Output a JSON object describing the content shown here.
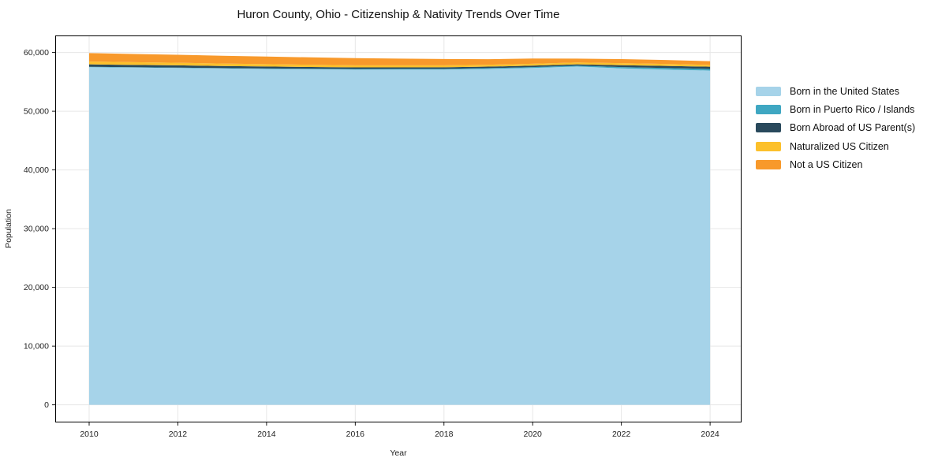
{
  "chart_data": {
    "type": "area",
    "stacked": true,
    "title": "Huron County, Ohio - Citizenship & Nativity Trends Over Time",
    "xlabel": "Year",
    "ylabel": "Population",
    "grid": true,
    "legend_position": "right-outside",
    "x": [
      2010,
      2011,
      2012,
      2013,
      2014,
      2015,
      2016,
      2017,
      2018,
      2019,
      2020,
      2021,
      2022,
      2023,
      2024
    ],
    "xticks": [
      2010,
      2012,
      2014,
      2016,
      2018,
      2020,
      2022,
      2024
    ],
    "xtick_labels": [
      "2010",
      "2012",
      "2014",
      "2016",
      "2018",
      "2020",
      "2022",
      "2024"
    ],
    "yticks": [
      0,
      10000,
      20000,
      30000,
      40000,
      50000,
      60000
    ],
    "ytick_labels": [
      "0",
      "10,000",
      "20,000",
      "30,000",
      "40,000",
      "50,000",
      "60,000"
    ],
    "xlim": [
      2009.24,
      2024.71
    ],
    "ylim": [
      -3000,
      62900
    ],
    "series": [
      {
        "name": "Born in the United States",
        "color": "#A6D3E9",
        "values": [
          57500,
          57430,
          57360,
          57280,
          57200,
          57150,
          57090,
          57090,
          57090,
          57200,
          57360,
          57620,
          57300,
          57100,
          56920
        ]
      },
      {
        "name": "Born in Puerto Rico / Islands",
        "color": "#3FA7C2",
        "values": [
          60,
          60,
          70,
          70,
          80,
          90,
          110,
          120,
          130,
          140,
          150,
          140,
          220,
          260,
          280
        ]
      },
      {
        "name": "Born Abroad of US Parent(s)",
        "color": "#29495C",
        "values": [
          420,
          400,
          380,
          350,
          330,
          300,
          270,
          260,
          260,
          250,
          250,
          230,
          320,
          360,
          380
        ]
      },
      {
        "name": "Naturalized US Citizen",
        "color": "#FCC02B",
        "values": [
          480,
          460,
          440,
          420,
          400,
          370,
          350,
          340,
          330,
          320,
          320,
          310,
          350,
          330,
          300
        ]
      },
      {
        "name": "Not a US Citizen",
        "color": "#F8992B",
        "values": [
          1440,
          1400,
          1360,
          1330,
          1300,
          1260,
          1220,
          1150,
          1080,
          950,
          900,
          660,
          680,
          680,
          640
        ]
      }
    ]
  }
}
